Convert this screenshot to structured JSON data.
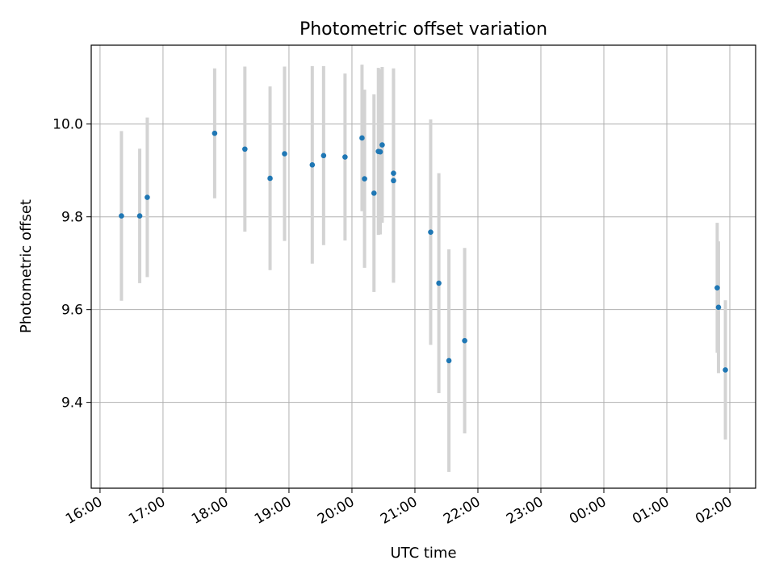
{
  "chart_data": {
    "type": "scatter",
    "title": "Photometric offset variation",
    "xlabel": "UTC time",
    "ylabel": "Photometric offset",
    "x_unit": "hours",
    "x_tick_values": [
      16,
      17,
      18,
      19,
      20,
      21,
      22,
      23,
      24,
      25,
      26
    ],
    "x_tick_labels": [
      "16:00",
      "17:00",
      "18:00",
      "19:00",
      "20:00",
      "21:00",
      "22:00",
      "23:00",
      "00:00",
      "01:00",
      "02:00"
    ],
    "y_ticks": [
      9.4,
      9.6,
      9.8,
      10.0
    ],
    "y_tick_labels": [
      "9.4",
      "9.6",
      "9.8",
      "10.0"
    ],
    "xlim": [
      15.86,
      26.41
    ],
    "ylim": [
      9.215,
      10.17
    ],
    "grid": true,
    "marker_color": "#1f77b4",
    "errorbar_color": "#d3d3d3",
    "points": [
      {
        "x": 16.34,
        "y": 9.802,
        "err": 0.183
      },
      {
        "x": 16.63,
        "y": 9.802,
        "err": 0.145
      },
      {
        "x": 16.75,
        "y": 9.842,
        "err": 0.172
      },
      {
        "x": 17.82,
        "y": 9.98,
        "err": 0.14
      },
      {
        "x": 18.3,
        "y": 9.946,
        "err": 0.178
      },
      {
        "x": 18.7,
        "y": 9.883,
        "err": 0.198
      },
      {
        "x": 18.93,
        "y": 9.936,
        "err": 0.188
      },
      {
        "x": 19.37,
        "y": 9.912,
        "err": 0.213
      },
      {
        "x": 19.55,
        "y": 9.932,
        "err": 0.193
      },
      {
        "x": 19.89,
        "y": 9.929,
        "err": 0.18
      },
      {
        "x": 20.16,
        "y": 9.97,
        "err": 0.158
      },
      {
        "x": 20.2,
        "y": 9.882,
        "err": 0.192
      },
      {
        "x": 20.35,
        "y": 9.851,
        "err": 0.213
      },
      {
        "x": 20.42,
        "y": 9.941,
        "err": 0.18
      },
      {
        "x": 20.45,
        "y": 9.94,
        "err": 0.178
      },
      {
        "x": 20.48,
        "y": 9.955,
        "err": 0.168
      },
      {
        "x": 20.66,
        "y": 9.894,
        "err": 0.226
      },
      {
        "x": 20.66,
        "y": 9.878,
        "err": 0.22
      },
      {
        "x": 21.25,
        "y": 9.767,
        "err": 0.243
      },
      {
        "x": 21.38,
        "y": 9.657,
        "err": 0.237
      },
      {
        "x": 21.54,
        "y": 9.49,
        "err": 0.24
      },
      {
        "x": 21.79,
        "y": 9.533,
        "err": 0.2
      },
      {
        "x": 25.8,
        "y": 9.647,
        "err": 0.14
      },
      {
        "x": 25.82,
        "y": 9.605,
        "err": 0.142
      },
      {
        "x": 25.93,
        "y": 9.47,
        "err": 0.15
      }
    ]
  }
}
